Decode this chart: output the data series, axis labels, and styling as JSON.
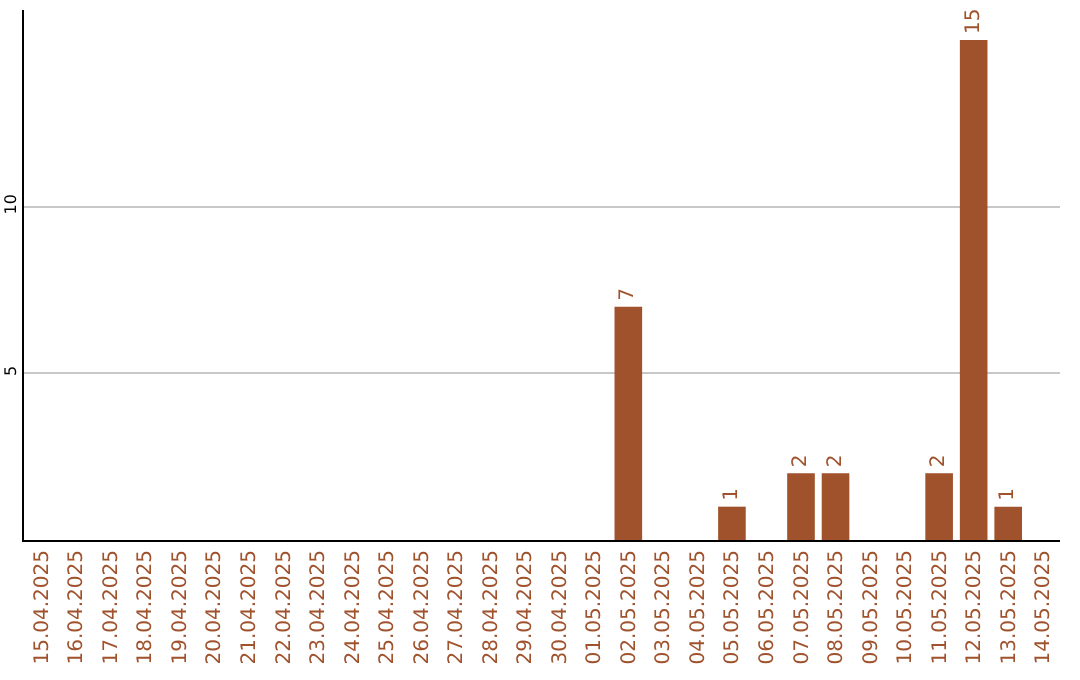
{
  "chart_data": {
    "type": "bar",
    "categories": [
      "15.04.2025",
      "16.04.2025",
      "17.04.2025",
      "18.04.2025",
      "19.04.2025",
      "20.04.2025",
      "21.04.2025",
      "22.04.2025",
      "23.04.2025",
      "24.04.2025",
      "25.04.2025",
      "26.04.2025",
      "27.04.2025",
      "28.04.2025",
      "29.04.2025",
      "30.04.2025",
      "01.05.2025",
      "02.05.2025",
      "03.05.2025",
      "04.05.2025",
      "05.05.2025",
      "06.05.2025",
      "07.05.2025",
      "08.05.2025",
      "09.05.2025",
      "10.05.2025",
      "11.05.2025",
      "12.05.2025",
      "13.05.2025",
      "14.05.2025"
    ],
    "values": [
      0,
      0,
      0,
      0,
      0,
      0,
      0,
      0,
      0,
      0,
      0,
      0,
      0,
      0,
      0,
      0,
      0,
      7,
      0,
      0,
      1,
      0,
      2,
      2,
      0,
      0,
      2,
      15,
      1,
      0
    ],
    "value_labels": [
      null,
      null,
      null,
      null,
      null,
      null,
      null,
      null,
      null,
      null,
      null,
      null,
      null,
      null,
      null,
      null,
      null,
      "7",
      null,
      null,
      "1",
      null,
      "2",
      "2",
      null,
      null,
      "2",
      "15",
      "1",
      null
    ],
    "color": "#a0522d",
    "ylim": [
      0,
      15.9
    ],
    "yticks": [
      5,
      10
    ],
    "grid": "y"
  }
}
